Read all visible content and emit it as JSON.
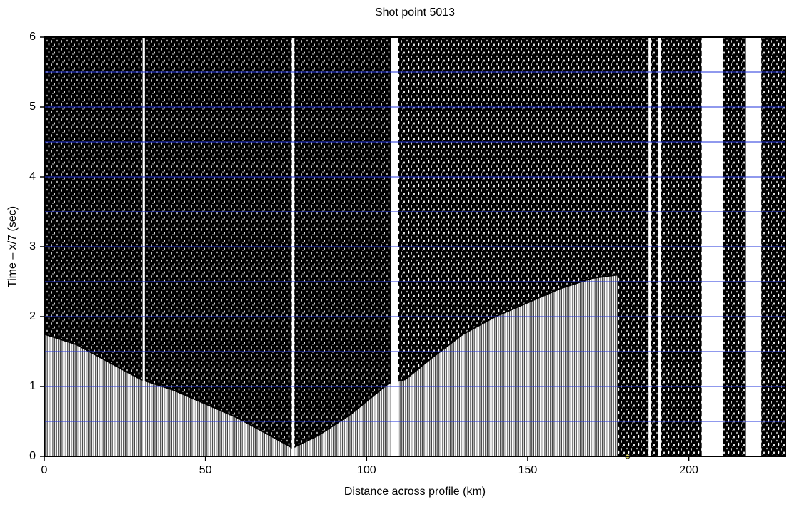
{
  "chart_data": {
    "type": "seismic",
    "title": "Shot point 5013",
    "xlabel": "Distance across profile (km)",
    "ylabel": "Time – x/7 (sec)",
    "xlim": [
      0,
      230
    ],
    "ylim": [
      0,
      6
    ],
    "xticks": [
      0,
      50,
      100,
      150,
      200
    ],
    "yticks": [
      0,
      1,
      2,
      3,
      4,
      5,
      6
    ],
    "ygrid": [
      0.5,
      1,
      1.5,
      2,
      2.5,
      3,
      3.5,
      4,
      4.5,
      5,
      5.5
    ],
    "grid_color": "#2233dd",
    "first_arrival": {
      "x": [
        0,
        10,
        20,
        30,
        40,
        50,
        60,
        70,
        77,
        85,
        95,
        107,
        112,
        120,
        130,
        140,
        150,
        160,
        170,
        178
      ],
      "values": [
        1.75,
        1.6,
        1.35,
        1.1,
        0.95,
        0.75,
        0.55,
        0.3,
        0.12,
        0.3,
        0.6,
        1.05,
        1.1,
        1.4,
        1.75,
        2.0,
        2.2,
        2.4,
        2.55,
        2.6
      ]
    },
    "gaps": [
      [
        30.5,
        31.2
      ],
      [
        76.8,
        77.6
      ],
      [
        107.5,
        109.8
      ],
      [
        187.5,
        188.3
      ],
      [
        190.5,
        191.3
      ],
      [
        204,
        210.5
      ],
      [
        217.5,
        222.5
      ]
    ],
    "marker": {
      "x": 181,
      "y": 0,
      "color": "#e8e060"
    }
  }
}
